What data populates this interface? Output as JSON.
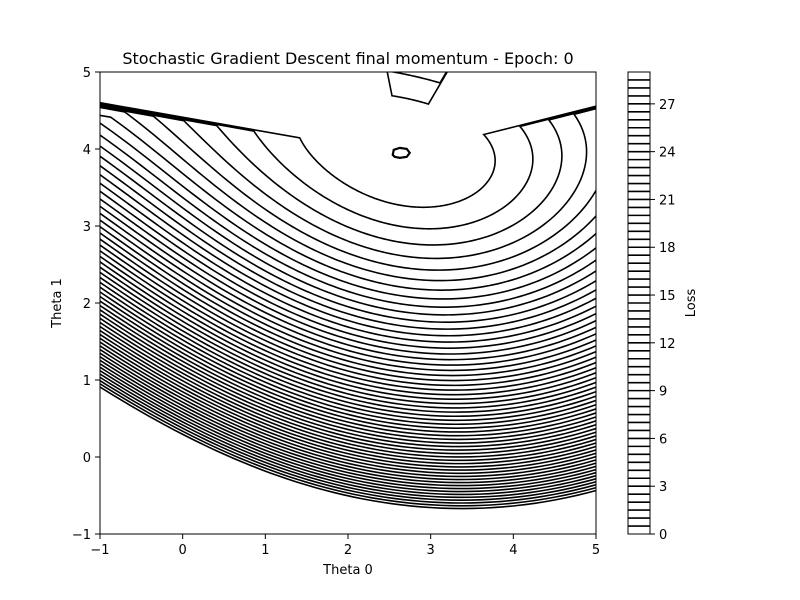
{
  "chart_data": {
    "type": "contour",
    "title": "Stochastic Gradient Descent final momentum - Epoch: 0",
    "xlabel": "Theta 0",
    "ylabel": "Theta 1",
    "xlim": [
      -1,
      5
    ],
    "ylim": [
      -1,
      5
    ],
    "xticks": [
      -1,
      0,
      1,
      2,
      3,
      4,
      5
    ],
    "yticks": [
      -1,
      0,
      1,
      2,
      3,
      4,
      5
    ],
    "line_color": "#000000",
    "grid": false,
    "minimum": {
      "theta0": 2.65,
      "theta1": 3.95
    },
    "contour_levels": [
      0.5,
      1,
      1.5,
      2,
      2.5,
      3,
      3.5,
      4,
      4.5,
      5,
      5.5,
      6,
      6.5,
      7,
      7.5,
      8,
      8.5,
      9,
      9.5,
      10,
      10.5,
      11,
      11.5,
      12,
      12.5,
      13,
      13.5,
      14,
      14.5,
      15,
      15.5,
      16,
      16.5,
      17,
      17.5,
      18,
      18.5,
      19,
      19.5,
      20,
      20.5,
      21,
      21.5,
      22,
      22.5,
      23,
      23.5,
      24,
      24.5,
      25,
      25.5,
      26,
      26.5,
      27,
      27.5,
      28,
      28.5
    ],
    "colorbar": {
      "label": "Loss",
      "range": [
        0,
        29
      ],
      "ticks": [
        0,
        3,
        6,
        9,
        12,
        15,
        18,
        21,
        24,
        27
      ],
      "level_step": 0.5
    }
  }
}
